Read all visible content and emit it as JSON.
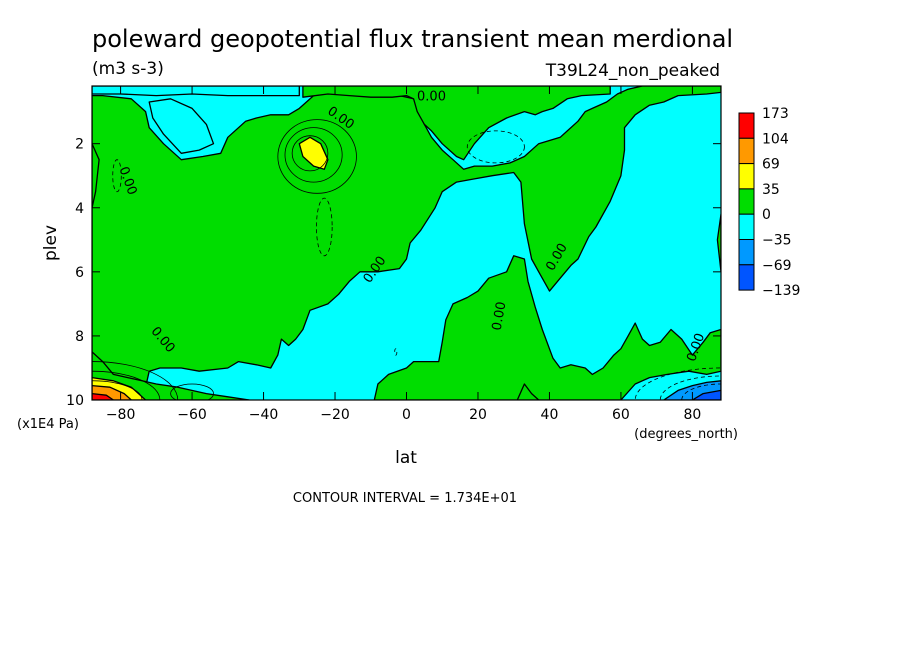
{
  "chart_data": {
    "type": "heatmap",
    "title": "poleward geopotential flux transient mean merdional",
    "units": "(m3 s-3)",
    "experiment": "T39L24_non_peaked",
    "xlabel": "lat",
    "xunits": "(degrees_north)",
    "ylabel": "plev",
    "yunits": "(x1E4 Pa)",
    "xlim": [
      -88,
      88
    ],
    "ylim": [
      10,
      0.2
    ],
    "x_ticks": [
      -80,
      -60,
      -40,
      -20,
      0,
      20,
      40,
      60,
      80
    ],
    "x_tick_labels": [
      "-80",
      "-60",
      "-40",
      "-20",
      "0",
      "20",
      "40",
      "60",
      "80"
    ],
    "y_ticks": [
      2,
      4,
      6,
      8,
      10
    ],
    "y_tick_labels": [
      "2",
      "4",
      "6",
      "8",
      "10"
    ],
    "contour_interval_text": "CONTOUR INTERVAL = 1.734E+01",
    "contour_labels": [
      "0.00",
      "0.00",
      "0.00",
      "0.00",
      "0.00",
      "0.00",
      "0.00",
      "0.00"
    ],
    "colorbar": {
      "levels": [
        "173",
        "104",
        "69",
        "35",
        "0",
        "-35",
        "-69",
        "-139"
      ],
      "colors": [
        "#ff0000",
        "#ff9900",
        "#ffff00",
        "#00dd00",
        "#00ffff",
        "#0099ff",
        "#0055ff"
      ]
    },
    "regions": [
      {
        "name": "positive-main",
        "level": "0 to 35",
        "color": "#00dd00",
        "polygon": [
          [
            -73,
            9.6
          ],
          [
            -72,
            9.1
          ],
          [
            -69,
            9.0
          ],
          [
            -63,
            9.0
          ],
          [
            -58,
            9.1
          ],
          [
            -50,
            9.0
          ],
          [
            -47,
            8.8
          ],
          [
            -42,
            8.9
          ],
          [
            -38,
            9.0
          ],
          [
            -36,
            8.6
          ],
          [
            -35,
            8.1
          ],
          [
            -33,
            8.3
          ],
          [
            -31,
            8.1
          ],
          [
            -29,
            7.8
          ],
          [
            -27,
            7.2
          ],
          [
            -22,
            7.0
          ],
          [
            -19,
            6.7
          ],
          [
            -16,
            6.3
          ],
          [
            -13,
            6.0
          ],
          [
            -8,
            6.0
          ],
          [
            -2,
            5.9
          ],
          [
            0,
            5.6
          ],
          [
            1,
            5.1
          ],
          [
            4,
            4.7
          ],
          [
            8,
            4.0
          ],
          [
            10,
            3.5
          ],
          [
            14,
            3.2
          ],
          [
            19,
            3.1
          ],
          [
            24,
            3.0
          ],
          [
            30,
            2.9
          ],
          [
            32,
            3.2
          ],
          [
            33,
            4.5
          ],
          [
            35,
            5.6
          ],
          [
            37,
            6.0
          ],
          [
            40,
            6.6
          ],
          [
            43,
            6.2
          ],
          [
            46,
            5.8
          ],
          [
            48,
            5.6
          ],
          [
            51,
            4.9
          ],
          [
            53,
            4.6
          ],
          [
            57,
            3.8
          ],
          [
            60,
            3.0
          ],
          [
            61,
            2.2
          ],
          [
            61,
            1.5
          ],
          [
            64,
            1.1
          ],
          [
            68,
            0.8
          ],
          [
            72,
            0.7
          ],
          [
            76,
            0.5
          ],
          [
            84,
            0.45
          ],
          [
            88,
            0.4
          ],
          [
            88,
            0.2
          ],
          [
            66,
            0.2
          ],
          [
            62,
            0.3
          ],
          [
            59,
            0.45
          ],
          [
            56,
            0.7
          ],
          [
            52,
            0.9
          ],
          [
            50,
            1.0
          ],
          [
            48,
            1.3
          ],
          [
            45,
            1.6
          ],
          [
            43,
            1.8
          ],
          [
            40,
            1.9
          ],
          [
            37,
            2.0
          ],
          [
            33,
            2.4
          ],
          [
            29,
            2.6
          ],
          [
            24,
            2.7
          ],
          [
            19,
            2.7
          ],
          [
            16,
            2.8
          ],
          [
            13,
            2.5
          ],
          [
            10,
            2.2
          ],
          [
            7,
            1.8
          ],
          [
            5,
            1.4
          ],
          [
            3,
            0.9
          ],
          [
            2,
            0.6
          ],
          [
            -2,
            0.5
          ],
          [
            -8,
            0.45
          ],
          [
            -14,
            0.4
          ],
          [
            -20,
            0.4
          ],
          [
            -26,
            0.5
          ],
          [
            -30,
            0.9
          ],
          [
            -33,
            1.1
          ],
          [
            -38,
            1.1
          ],
          [
            -42,
            1.2
          ],
          [
            -45,
            1.3
          ],
          [
            -47,
            1.5
          ],
          [
            -50,
            1.8
          ],
          [
            -52,
            2.3
          ],
          [
            -57,
            2.4
          ],
          [
            -63,
            2.5
          ],
          [
            -68,
            2.0
          ],
          [
            -72,
            1.5
          ],
          [
            -73,
            1.0
          ],
          [
            -77,
            0.6
          ],
          [
            -85,
            0.5
          ],
          [
            -88,
            0.5
          ],
          [
            -88,
            9.6
          ]
        ]
      },
      {
        "name": "positive-top-right",
        "level": "0 to 35",
        "color": "#00dd00",
        "polygon": [
          [
            -29,
            0.55
          ],
          [
            -22,
            0.45
          ],
          [
            -16,
            0.5
          ],
          [
            -10,
            0.55
          ],
          [
            -4,
            0.55
          ],
          [
            0,
            0.5
          ],
          [
            2,
            0.6
          ],
          [
            3,
            1.0
          ],
          [
            5,
            1.4
          ],
          [
            7,
            1.6
          ],
          [
            10,
            2.0
          ],
          [
            14,
            2.4
          ],
          [
            16,
            2.5
          ],
          [
            19,
            2.0
          ],
          [
            23,
            1.5
          ],
          [
            28,
            1.2
          ],
          [
            33,
            1.0
          ],
          [
            36,
            1.1
          ],
          [
            38,
            1.0
          ],
          [
            41,
            0.9
          ],
          [
            45,
            0.6
          ],
          [
            49,
            0.5
          ],
          [
            57,
            0.45
          ],
          [
            57,
            0.2
          ],
          [
            -29,
            0.2
          ]
        ]
      },
      {
        "name": "positive-lower-middle",
        "level": "0 to 35",
        "color": "#00dd00",
        "polygon": [
          [
            -9,
            10
          ],
          [
            -8,
            9.5
          ],
          [
            -5,
            9.2
          ],
          [
            0,
            9.0
          ],
          [
            2,
            8.8
          ],
          [
            5,
            8.8
          ],
          [
            9,
            8.8
          ],
          [
            10,
            8.2
          ],
          [
            11,
            7.5
          ],
          [
            13,
            7.0
          ],
          [
            17,
            6.8
          ],
          [
            20,
            6.6
          ],
          [
            23,
            6.2
          ],
          [
            28,
            6.0
          ],
          [
            30,
            5.5
          ],
          [
            33,
            5.6
          ],
          [
            34,
            6.3
          ],
          [
            36,
            7.1
          ],
          [
            38,
            7.8
          ],
          [
            41,
            8.7
          ],
          [
            43,
            9.0
          ],
          [
            46,
            8.9
          ],
          [
            50,
            9.0
          ],
          [
            52,
            9.2
          ],
          [
            55,
            9.0
          ],
          [
            58,
            8.6
          ],
          [
            60,
            8.4
          ],
          [
            62,
            8.0
          ],
          [
            64,
            7.6
          ],
          [
            66,
            8.1
          ],
          [
            68,
            8.3
          ],
          [
            71,
            8.2
          ],
          [
            74,
            7.8
          ],
          [
            77,
            8.1
          ],
          [
            80,
            8.6
          ],
          [
            83,
            8.2
          ],
          [
            85,
            7.9
          ],
          [
            88,
            7.8
          ],
          [
            88,
            9.1
          ],
          [
            84,
            9.2
          ],
          [
            79,
            9.1
          ],
          [
            73,
            9.2
          ],
          [
            68,
            9.3
          ],
          [
            64,
            9.5
          ],
          [
            60,
            10.0
          ]
        ]
      },
      {
        "name": "positive-bottom-left",
        "level": "0 to 35",
        "color": "#00dd00",
        "polygon": [
          [
            -88,
            8.5
          ],
          [
            -85,
            8.8
          ],
          [
            -82,
            9.2
          ],
          [
            -78,
            9.3
          ],
          [
            -74,
            9.4
          ],
          [
            -70,
            9.5
          ],
          [
            -64,
            9.6
          ],
          [
            -56,
            9.8
          ],
          [
            -50,
            9.9
          ],
          [
            -44,
            10.0
          ],
          [
            -88,
            10.0
          ]
        ]
      },
      {
        "name": "positive-bottom-middle",
        "level": "0 to 35",
        "color": "#00dd00",
        "polygon": [
          [
            31,
            10.0
          ],
          [
            33,
            9.5
          ],
          [
            35,
            9.8
          ],
          [
            37,
            10.0
          ]
        ]
      },
      {
        "name": "positive-left-strip",
        "level": "0 to 35",
        "color": "#00dd00",
        "polygon": [
          [
            -88,
            2.0
          ],
          [
            -86,
            2.5
          ],
          [
            -87,
            3.5
          ],
          [
            -88,
            4.0
          ]
        ]
      },
      {
        "name": "positive-right-strip",
        "level": "0 to 35",
        "color": "#00dd00",
        "polygon": [
          [
            88,
            4.2
          ],
          [
            87,
            5.0
          ],
          [
            88,
            6.0
          ]
        ]
      },
      {
        "name": "negative-top-left",
        "level": "-35 to 0",
        "color": "#00ffff",
        "polygon": [
          [
            -88,
            0.2
          ],
          [
            -30,
            0.2
          ],
          [
            -30,
            0.5
          ],
          [
            -34,
            0.5
          ],
          [
            -40,
            0.5
          ],
          [
            -50,
            0.5
          ],
          [
            -60,
            0.45
          ],
          [
            -70,
            0.5
          ],
          [
            -80,
            0.45
          ],
          [
            -88,
            0.45
          ]
        ]
      },
      {
        "name": "negative-small-top-1",
        "level": "-35 to 0",
        "color": "#00ffff",
        "polygon": [
          [
            -72,
            0.7
          ],
          [
            -66,
            0.6
          ],
          [
            -60,
            0.9
          ],
          [
            -56,
            1.4
          ],
          [
            -54,
            2.0
          ],
          [
            -58,
            2.2
          ],
          [
            -63,
            2.3
          ],
          [
            -68,
            1.7
          ],
          [
            -71,
            1.2
          ]
        ]
      },
      {
        "name": "yellow-patch",
        "level": "35 to 69",
        "color": "#ffff00",
        "polygon": [
          [
            -30,
            2.0
          ],
          [
            -27,
            1.8
          ],
          [
            -24,
            2.0
          ],
          [
            -22,
            2.5
          ],
          [
            -23,
            2.8
          ],
          [
            -26,
            2.7
          ],
          [
            -29,
            2.4
          ]
        ]
      },
      {
        "name": "warm-bottom-left-1",
        "level": "35 to 69",
        "color": "#ffff00",
        "polygon": [
          [
            -88,
            9.3
          ],
          [
            -82,
            9.4
          ],
          [
            -77,
            9.6
          ],
          [
            -73,
            10.0
          ],
          [
            -88,
            10.0
          ]
        ]
      },
      {
        "name": "warm-bottom-left-2",
        "level": "69 to 104",
        "color": "#ff9900",
        "polygon": [
          [
            -88,
            9.55
          ],
          [
            -83,
            9.6
          ],
          [
            -79,
            9.8
          ],
          [
            -77,
            10.0
          ],
          [
            -88,
            10.0
          ]
        ]
      },
      {
        "name": "warm-bottom-left-3",
        "level": ">104",
        "color": "#ff0000",
        "polygon": [
          [
            -88,
            9.8
          ],
          [
            -84,
            9.85
          ],
          [
            -82,
            10.0
          ],
          [
            -88,
            10.0
          ]
        ]
      },
      {
        "name": "cold-bottom-right-1",
        "level": "-69 to -35",
        "color": "#0099ff",
        "polygon": [
          [
            72,
            10.0
          ],
          [
            76,
            9.7
          ],
          [
            80,
            9.55
          ],
          [
            84,
            9.45
          ],
          [
            88,
            9.4
          ],
          [
            88,
            10.0
          ]
        ]
      },
      {
        "name": "cold-bottom-right-2",
        "level": "<-69",
        "color": "#0055ff",
        "polygon": [
          [
            80,
            10.0
          ],
          [
            83,
            9.8
          ],
          [
            88,
            9.7
          ],
          [
            88,
            10.0
          ]
        ]
      }
    ]
  }
}
